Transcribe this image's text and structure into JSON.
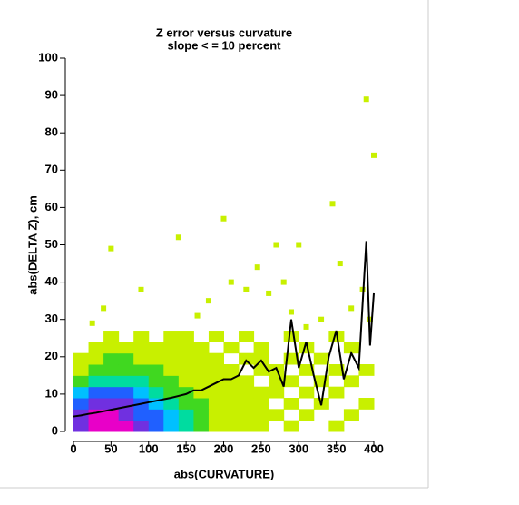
{
  "chart_data": {
    "type": "heatmap",
    "title": "Z error versus curvature",
    "subtitle": "slope < = 10 percent",
    "x_label": "abs(CURVATURE)",
    "y_label": "abs(DELTA Z), cm",
    "xlim": [
      0,
      400
    ],
    "ylim": [
      0,
      100
    ],
    "xticks": [
      0,
      50,
      100,
      150,
      200,
      250,
      300,
      350,
      400
    ],
    "yticks": [
      0,
      10,
      20,
      30,
      40,
      50,
      60,
      70,
      80,
      90,
      100
    ],
    "colorscale": [
      "#c8f000",
      "#40d820",
      "#00dca0",
      "#00c0ff",
      "#2060ff",
      "#7030e0",
      "#e800c8"
    ],
    "xbins": [
      0,
      20,
      40,
      60,
      80,
      100,
      120,
      140,
      160,
      180,
      200,
      220,
      240,
      260,
      280,
      300,
      320,
      340,
      360,
      380,
      400
    ],
    "ybins": [
      0,
      3,
      6,
      9,
      12,
      15,
      18,
      21,
      24,
      27
    ],
    "counts": [
      [
        6,
        7,
        7,
        7,
        6,
        5,
        4,
        3,
        2,
        1,
        1,
        1,
        1,
        0,
        1,
        0,
        0,
        1,
        0,
        0
      ],
      [
        6,
        7,
        7,
        6,
        5,
        5,
        4,
        3,
        2,
        1,
        1,
        1,
        1,
        1,
        0,
        1,
        0,
        0,
        1,
        0
      ],
      [
        5,
        6,
        6,
        6,
        5,
        4,
        3,
        2,
        2,
        1,
        1,
        1,
        1,
        0,
        1,
        0,
        1,
        0,
        0,
        1
      ],
      [
        4,
        5,
        5,
        5,
        4,
        3,
        2,
        2,
        1,
        1,
        1,
        1,
        1,
        1,
        0,
        1,
        0,
        1,
        0,
        0
      ],
      [
        2,
        3,
        3,
        3,
        3,
        2,
        2,
        1,
        1,
        1,
        1,
        1,
        0,
        1,
        1,
        0,
        1,
        0,
        1,
        0
      ],
      [
        1,
        2,
        2,
        2,
        2,
        2,
        1,
        1,
        1,
        1,
        1,
        0,
        1,
        1,
        0,
        1,
        0,
        1,
        0,
        1
      ],
      [
        1,
        1,
        2,
        2,
        1,
        1,
        1,
        1,
        1,
        1,
        0,
        1,
        1,
        0,
        1,
        0,
        1,
        0,
        0,
        0
      ],
      [
        0,
        1,
        1,
        1,
        1,
        1,
        1,
        1,
        1,
        0,
        1,
        0,
        1,
        0,
        0,
        1,
        0,
        0,
        1,
        0
      ],
      [
        0,
        0,
        1,
        0,
        1,
        0,
        1,
        1,
        0,
        1,
        0,
        1,
        0,
        0,
        1,
        0,
        0,
        1,
        0,
        0
      ]
    ],
    "points": {
      "x": [
        50,
        200,
        140,
        345,
        390,
        400,
        270,
        300,
        230,
        245,
        210,
        280,
        355,
        385,
        180,
        260,
        310,
        330,
        370,
        395,
        90,
        40,
        25,
        165,
        290
      ],
      "y": [
        49,
        57,
        52,
        61,
        89,
        74,
        50,
        50,
        38,
        44,
        40,
        40,
        45,
        38,
        35,
        37,
        28,
        30,
        33,
        30,
        38,
        33,
        29,
        31,
        32
      ]
    },
    "line": {
      "color": "#000000",
      "x": [
        0,
        10,
        20,
        30,
        40,
        50,
        60,
        70,
        80,
        90,
        100,
        110,
        120,
        130,
        140,
        150,
        160,
        170,
        180,
        190,
        200,
        210,
        220,
        230,
        240,
        250,
        260,
        270,
        280,
        290,
        300,
        310,
        320,
        330,
        340,
        350,
        360,
        370,
        380,
        390,
        395,
        400
      ],
      "y": [
        4,
        4.3,
        4.7,
        5,
        5.4,
        5.8,
        6.2,
        6.6,
        7,
        7.4,
        7.8,
        8.2,
        8.6,
        9,
        9.5,
        10,
        11,
        11,
        12,
        13,
        14,
        14,
        15,
        19,
        17,
        19,
        16,
        17,
        12,
        30,
        17,
        24,
        15,
        7,
        20,
        27,
        14,
        21,
        17,
        51,
        23,
        37
      ]
    }
  }
}
